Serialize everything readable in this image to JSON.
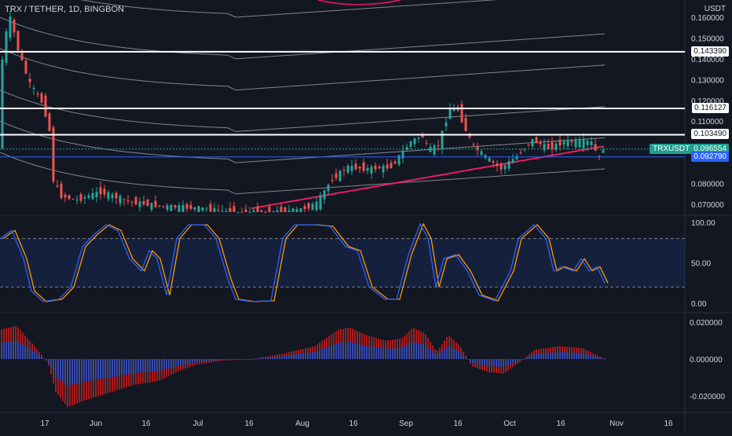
{
  "header": {
    "symbol_title": "TRX / TETHER, 1D, BINGBON",
    "currency": "USDT"
  },
  "colors": {
    "background": "#131722",
    "up": "#26a69a",
    "down": "#ef5350",
    "ma": "#e91e63",
    "band": "#b2b5be",
    "stoch_k": "#2962ff",
    "stoch_d": "#ff9800",
    "hist_pos": "#b71c1c",
    "hist_neg": "#1a237e"
  },
  "price_axis": {
    "ticks": [
      "0.160000",
      "0.150000",
      "0.140000",
      "0.130000",
      "0.120000",
      "0.110000",
      "0.080000",
      "0.070000"
    ]
  },
  "levels": [
    {
      "value": "0.143390",
      "style": "white"
    },
    {
      "value": "0.116127",
      "style": "white"
    },
    {
      "value": "0.103490",
      "style": "white"
    },
    {
      "value": "0.096554",
      "style": "teal",
      "label": "TRXUSDT"
    },
    {
      "value": "0.092790",
      "style": "blue"
    }
  ],
  "stoch_axis": {
    "ticks": [
      "100.00",
      "50.00",
      "0.00"
    ]
  },
  "macd_axis": {
    "ticks": [
      "0.020000",
      "0.000000",
      "-0.020000"
    ]
  },
  "time_axis": {
    "ticks": [
      "17",
      "Jun",
      "16",
      "Jul",
      "16",
      "Aug",
      "16",
      "Sep",
      "16",
      "Oct",
      "16",
      "Nov",
      "16"
    ]
  }
}
